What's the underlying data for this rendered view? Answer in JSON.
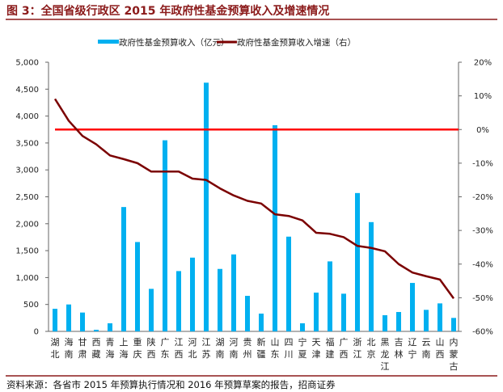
{
  "title": "图 3：全国省级行政区 2015 年政府性基金预算收入及增速情况",
  "source": "资料来源：各省市 2015 年预算执行情况和 2016 年预算草案的报告，招商证券",
  "colors": {
    "bar": "#00b0f0",
    "line": "#7b0000",
    "zero_line": "#ff0000",
    "title": "#8b1a1a"
  },
  "chart_data": {
    "type": "bar+line",
    "title": "图 3：全国省级行政区 2015 年政府性基金预算收入及增速情况",
    "legend_position": "top",
    "grid": false,
    "categories": [
      "湖北",
      "海南",
      "甘肃",
      "西藏",
      "青海",
      "上海",
      "重庆",
      "陕西",
      "广东",
      "江西",
      "河北",
      "江苏",
      "湖南",
      "河南",
      "贵州",
      "新疆",
      "山东",
      "四川",
      "宁夏",
      "天津",
      "福建",
      "广西",
      "浙江",
      "北京",
      "黑龙江",
      "吉林",
      "辽宁",
      "云南",
      "山西",
      "内蒙古"
    ],
    "series": [
      {
        "name": "政府性基金预算收入（亿元）",
        "type": "bar",
        "axis": "left",
        "values": [
          420,
          500,
          350,
          30,
          150,
          2310,
          1660,
          790,
          3550,
          1120,
          1370,
          4620,
          1160,
          1430,
          660,
          330,
          3830,
          1760,
          150,
          720,
          1300,
          700,
          2570,
          2030,
          300,
          360,
          900,
          400,
          520,
          250
        ]
      },
      {
        "name": "政府性基金预算收入增速（右）",
        "type": "line",
        "axis": "right",
        "values": [
          9.1,
          2.6,
          -1.9,
          -4.4,
          -7.7,
          -8.8,
          -10.0,
          -12.5,
          -12.5,
          -12.5,
          -14.6,
          -15.0,
          -17.5,
          -19.6,
          -21.2,
          -22.0,
          -25.2,
          -25.7,
          -27.0,
          -30.7,
          -31.0,
          -32.0,
          -34.6,
          -35.2,
          -36.2,
          -40.0,
          -42.5,
          -43.6,
          -44.6,
          -50.2
        ]
      }
    ],
    "reference_line": {
      "axis": "right",
      "value": 0
    },
    "y_left": {
      "range": [
        0,
        5000
      ],
      "ticks": [
        "0",
        "500",
        "1,000",
        "1,500",
        "2,000",
        "2,500",
        "3,000",
        "3,500",
        "4,000",
        "4,500",
        "5,000"
      ]
    },
    "y_right": {
      "range": [
        -60,
        20
      ],
      "unit": "%",
      "ticks": [
        "-60%",
        "-50%",
        "-40%",
        "-30%",
        "-20%",
        "-10%",
        "0%",
        "10%",
        "20%"
      ]
    }
  }
}
